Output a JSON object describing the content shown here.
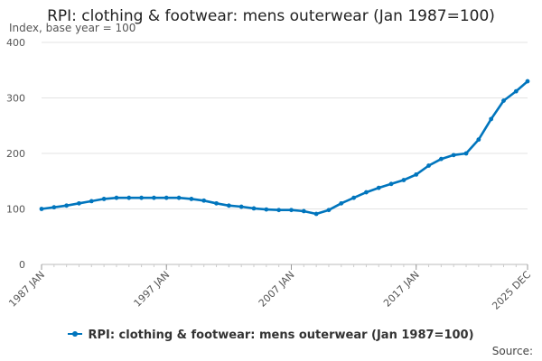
{
  "chart_data": {
    "type": "line",
    "title": "RPI: clothing & footwear: mens outerwear (Jan 1987=100)",
    "subtitle": "Index, base year = 100",
    "ylim": [
      0,
      400
    ],
    "yticks": [
      0,
      100,
      200,
      300,
      400
    ],
    "xlim": [
      "1987-01",
      "2025-12"
    ],
    "xticks": [
      {
        "label": "1987 JAN",
        "date": "1987-01"
      },
      {
        "label": "1997 JAN",
        "date": "1997-01"
      },
      {
        "label": "2007 JAN",
        "date": "2007-01"
      },
      {
        "label": "2017 JAN",
        "date": "2017-01"
      },
      {
        "label": "2025 DEC",
        "date": "2025-12"
      }
    ],
    "grid": true,
    "legend": "bottom",
    "color": "#0075bd",
    "series": [
      {
        "name": "RPI: clothing & footwear: mens outerwear (Jan 1987=100)",
        "points": [
          [
            "1987-01",
            100
          ],
          [
            "1988-01",
            103
          ],
          [
            "1989-01",
            106
          ],
          [
            "1990-01",
            110
          ],
          [
            "1991-01",
            114
          ],
          [
            "1992-01",
            118
          ],
          [
            "1993-01",
            120
          ],
          [
            "1994-01",
            120
          ],
          [
            "1995-01",
            120
          ],
          [
            "1996-01",
            120
          ],
          [
            "1997-01",
            120
          ],
          [
            "1998-01",
            120
          ],
          [
            "1999-01",
            118
          ],
          [
            "2000-01",
            115
          ],
          [
            "2001-01",
            110
          ],
          [
            "2002-01",
            106
          ],
          [
            "2003-01",
            104
          ],
          [
            "2004-01",
            101
          ],
          [
            "2005-01",
            99
          ],
          [
            "2006-01",
            98
          ],
          [
            "2007-01",
            98
          ],
          [
            "2008-01",
            96
          ],
          [
            "2009-01",
            91
          ],
          [
            "2010-01",
            98
          ],
          [
            "2011-01",
            110
          ],
          [
            "2012-01",
            120
          ],
          [
            "2013-01",
            130
          ],
          [
            "2014-01",
            138
          ],
          [
            "2015-01",
            145
          ],
          [
            "2016-01",
            152
          ],
          [
            "2017-01",
            162
          ],
          [
            "2018-01",
            178
          ],
          [
            "2019-01",
            190
          ],
          [
            "2020-01",
            197
          ],
          [
            "2021-01",
            200
          ],
          [
            "2022-01",
            225
          ],
          [
            "2023-01",
            262
          ],
          [
            "2024-01",
            295
          ],
          [
            "2025-01",
            312
          ],
          [
            "2025-12",
            330
          ]
        ]
      }
    ],
    "source_label": "Source:"
  }
}
